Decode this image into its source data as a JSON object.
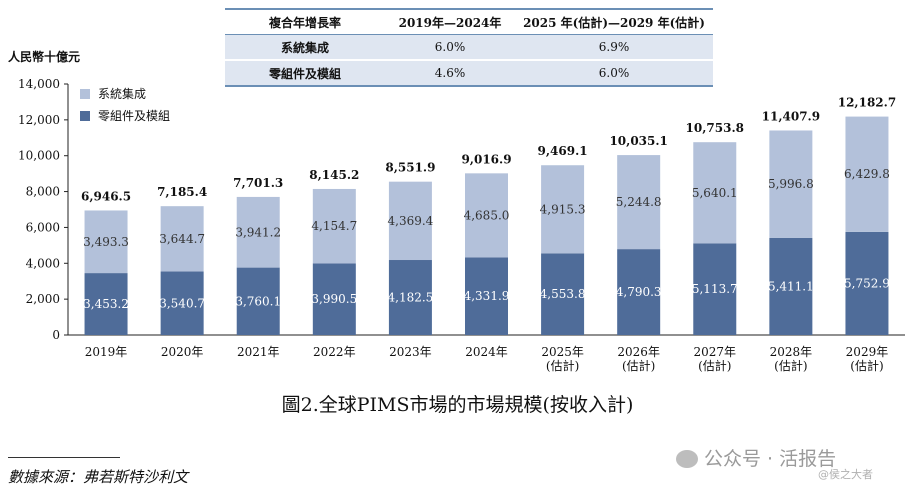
{
  "cagr_table": {
    "header": [
      "複合年增長率",
      "2019年—2024年",
      "2025 年(估計)—2029 年(估計)"
    ],
    "rows": [
      {
        "label": "系統集成",
        "v1": "6.0%",
        "v2": "6.9%"
      },
      {
        "label": "零組件及模組",
        "v1": "4.6%",
        "v2": "6.0%"
      }
    ]
  },
  "chart_data": {
    "type": "bar",
    "stacked": true,
    "ylabel": "人民幣十億元",
    "ylim": [
      0,
      14000
    ],
    "yticks": [
      0,
      2000,
      4000,
      6000,
      8000,
      10000,
      12000,
      14000
    ],
    "ytick_labels": [
      "0",
      "2,000",
      "4,000",
      "6,000",
      "8,000",
      "10,000",
      "12,000",
      "14,000"
    ],
    "categories": [
      [
        "2019年"
      ],
      [
        "2020年"
      ],
      [
        "2021年"
      ],
      [
        "2022年"
      ],
      [
        "2023年"
      ],
      [
        "2024年"
      ],
      [
        "2025年",
        "(估計)"
      ],
      [
        "2026年",
        "(估計)"
      ],
      [
        "2027年",
        "(估計)"
      ],
      [
        "2028年",
        "(估計)"
      ],
      [
        "2029年",
        "(估計)"
      ]
    ],
    "series": [
      {
        "name": "零組件及模組",
        "color": "#4f6c99",
        "values": [
          3453.2,
          3540.7,
          3760.1,
          3990.5,
          4182.5,
          4331.9,
          4553.8,
          4790.3,
          5113.7,
          5411.1,
          5752.9
        ],
        "labels": [
          "3,453.2",
          "3,540.7",
          "3,760.1",
          "3,990.5",
          "4,182.5",
          "4,331.9",
          "4,553.8",
          "4,790.3",
          "5,113.7",
          "5,411.1",
          "5,752.9"
        ]
      },
      {
        "name": "系統集成",
        "color": "#b3c1da",
        "values": [
          3493.3,
          3644.7,
          3941.2,
          4154.7,
          4369.4,
          4685.0,
          4915.3,
          5244.8,
          5640.1,
          5996.8,
          6429.8
        ],
        "labels": [
          "3,493.3",
          "3,644.7",
          "3,941.2",
          "4,154.7",
          "4,369.4",
          "4,685.0",
          "4,915.3",
          "5,244.8",
          "5,640.1",
          "5,996.8",
          "6,429.8"
        ]
      }
    ],
    "totals": [
      6946.5,
      7185.4,
      7701.3,
      8145.2,
      8551.9,
      9016.9,
      9469.1,
      10035.1,
      10753.8,
      11407.9,
      12182.7
    ],
    "total_labels": [
      "6,946.5",
      "7,185.4",
      "7,701.3",
      "8,145.2",
      "8,551.9",
      "9,016.9",
      "9,469.1",
      "10,035.1",
      "10,753.8",
      "11,407.9",
      "12,182.7"
    ],
    "legend": [
      {
        "name": "系統集成",
        "color": "#b3c1da"
      },
      {
        "name": "零組件及模組",
        "color": "#4f6c99"
      }
    ],
    "legend_position": "top-left",
    "grid": false
  },
  "caption": "圖2.全球PIMS市場的市場規模(按收入計)",
  "source": "數據來源：弗若斯特沙利文",
  "watermark": "公众号 · 活报告",
  "watermark2": "@侯之大者"
}
